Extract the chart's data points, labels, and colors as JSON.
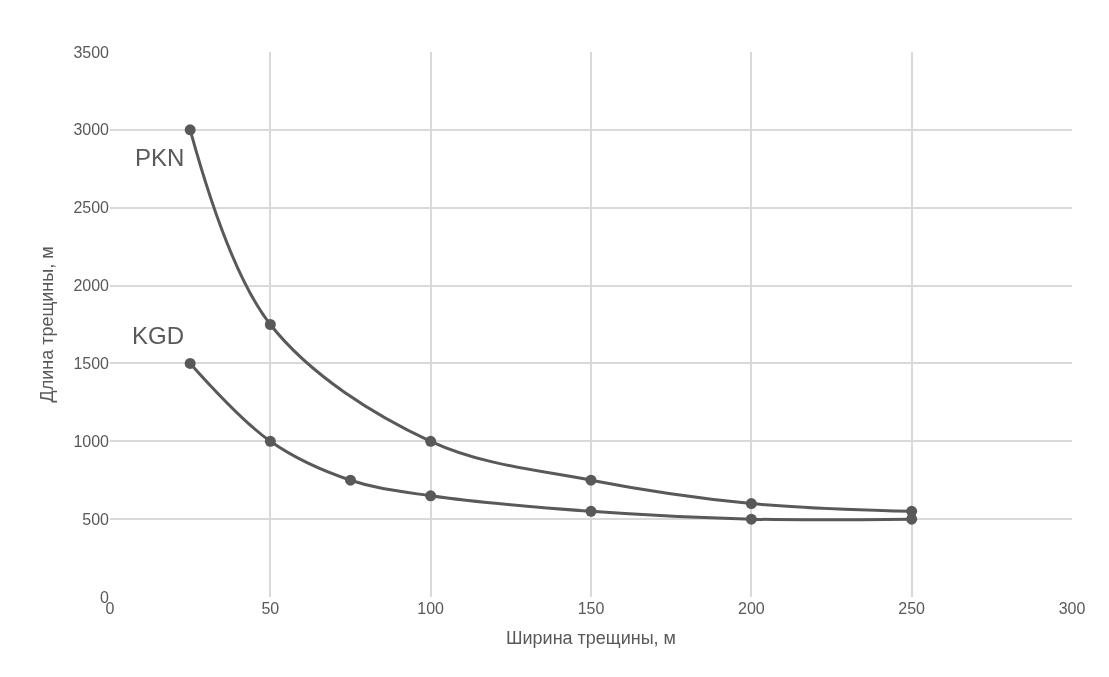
{
  "chart_data": {
    "type": "line",
    "xlabel": "Ширина трещины, м",
    "ylabel": "Длина трещины, м",
    "series": [
      {
        "name": "PKN",
        "color": "#595959",
        "x": [
          25,
          50,
          100,
          150,
          200,
          250
        ],
        "values": [
          3000,
          1750,
          1000,
          750,
          600,
          550
        ]
      },
      {
        "name": "KGD",
        "color": "#595959",
        "x": [
          25,
          50,
          75,
          100,
          150,
          200,
          250
        ],
        "values": [
          1500,
          1000,
          750,
          650,
          550,
          500,
          500
        ]
      }
    ],
    "xlim": [
      0,
      300
    ],
    "xticks": [
      0,
      50,
      100,
      150,
      200,
      250,
      300
    ],
    "ylim": [
      0,
      3500
    ],
    "yticks": [
      0,
      500,
      1000,
      1500,
      2000,
      2500,
      3000,
      3500
    ],
    "grid": true,
    "marker": "circle",
    "line_style": "solid",
    "legend": false
  }
}
